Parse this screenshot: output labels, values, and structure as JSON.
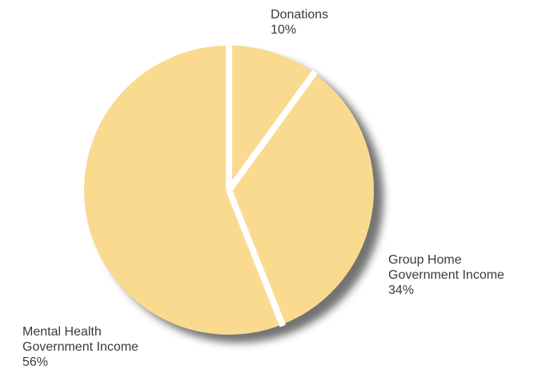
{
  "chart_data": {
    "type": "pie",
    "title": "",
    "legend": "none",
    "start_angle_deg": 0,
    "direction": "clockwise",
    "slice_color": "#f9da8f",
    "separator_color": "#ffffff",
    "shadow_color": "#5a5a5a",
    "slices": [
      {
        "label_lines": [
          "Donations"
        ],
        "value": 10,
        "value_label": "10%"
      },
      {
        "label_lines": [
          "Group Home",
          "Government Income"
        ],
        "value": 34,
        "value_label": "34%"
      },
      {
        "label_lines": [
          "Mental Health",
          "Government Income"
        ],
        "value": 56,
        "value_label": "56%"
      }
    ]
  }
}
